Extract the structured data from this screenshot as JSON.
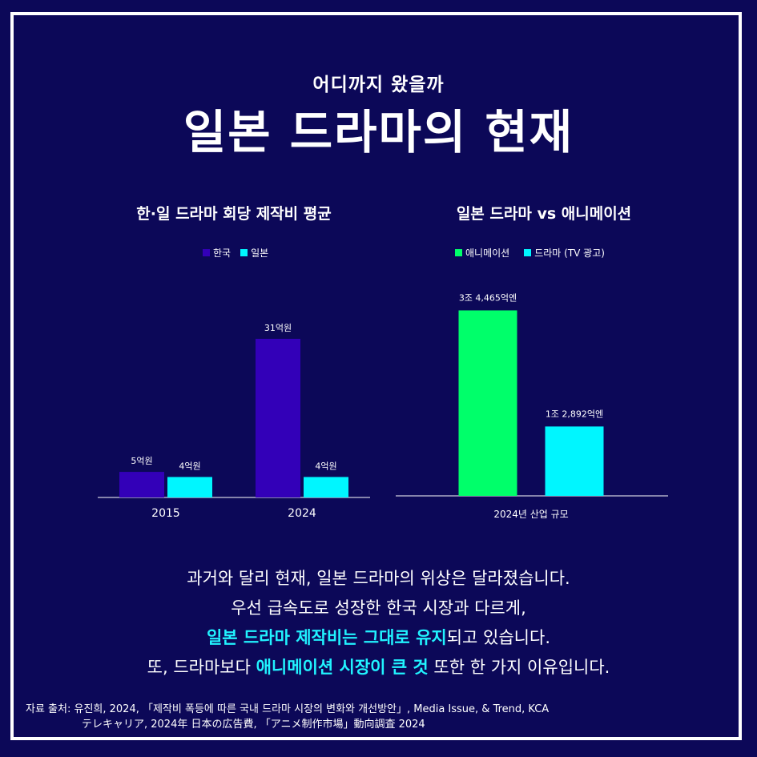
{
  "header": {
    "subtitle": "어디까지 왔을까",
    "title": "일본 드라마의 현재"
  },
  "colors": {
    "korea": "#3300b8",
    "japan": "#00f6ff",
    "animation": "#00ff6a",
    "drama": "#00f6ff"
  },
  "chart_data": [
    {
      "type": "bar",
      "title": "한·일 드라마 회당 제작비 평균",
      "categories": [
        "2015",
        "2024"
      ],
      "series": [
        {
          "name": "한국",
          "values": [
            5,
            31
          ],
          "labels": [
            "5억원",
            "31억원"
          ]
        },
        {
          "name": "일본",
          "values": [
            4,
            4
          ],
          "labels": [
            "4억원",
            "4억원"
          ]
        }
      ],
      "ylim": [
        0,
        36
      ]
    },
    {
      "type": "bar",
      "title": "일본 드라마 vs 애니메이션",
      "categories": [
        "2024년 산업 규모"
      ],
      "series": [
        {
          "name": "애니메이션",
          "values": [
            34465
          ],
          "labels": [
            "3조 4,465억엔"
          ]
        },
        {
          "name": "드라마 (TV 광고)",
          "values": [
            12892
          ],
          "labels": [
            "1조 2,892억엔"
          ]
        }
      ],
      "ylim": [
        0,
        39000
      ]
    }
  ],
  "body": {
    "line1": "과거와 달리 현재, 일본 드라마의 위상은 달라졌습니다.",
    "line2": "우선 급속도로 성장한 한국 시장과 다르게,",
    "line3_highlight": "일본 드라마 제작비는 그대로 유지",
    "line3_rest": "되고 있습니다.",
    "line4_pre": "또, 드라마보다 ",
    "line4_highlight": "애니메이션 시장이 큰 것",
    "line4_rest": " 또한 한 가지 이유입니다."
  },
  "source": {
    "line1": "자료 출처: 유진희, 2024, 「제작비 폭등에 따른 국내 드라마 시장의 변화와 개선방안」, Media Issue, & Trend, KCA",
    "line2": "テレキャリア, 2024年 日本の広告費, 「アニメ制作市場」動向調査 2024"
  }
}
